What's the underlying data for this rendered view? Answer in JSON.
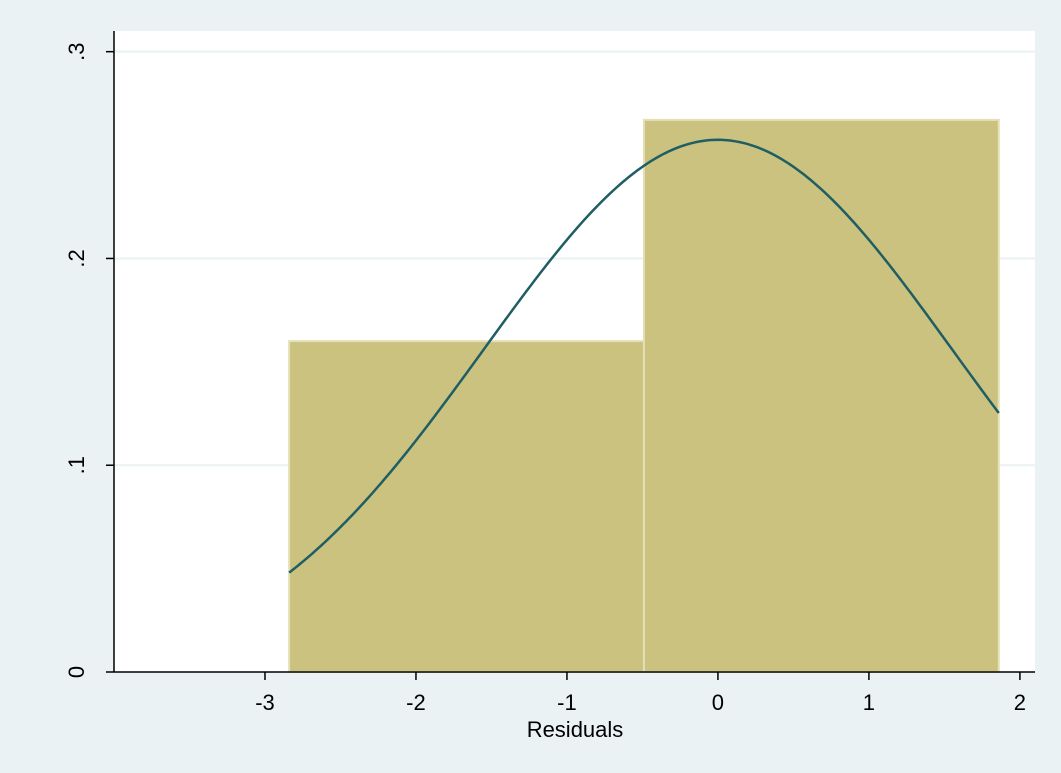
{
  "chart_data": {
    "type": "bar",
    "subtype": "histogram-with-normal-density",
    "title": "",
    "xlabel": "Residuals",
    "ylabel": "",
    "xlim": [
      -4,
      2.1
    ],
    "ylim": [
      0,
      0.31
    ],
    "x_ticks": [
      -3,
      -2,
      -1,
      0,
      1,
      2
    ],
    "x_tick_labels": [
      "-3",
      "-2",
      "-1",
      "0",
      "1",
      "2"
    ],
    "y_ticks": [
      0,
      0.1,
      0.2,
      0.3
    ],
    "y_tick_labels": [
      "0",
      ".1",
      ".2",
      ".3"
    ],
    "grid": "horizontal",
    "bins": [
      {
        "x0": -2.84,
        "x1": -0.49,
        "density": 0.16
      },
      {
        "x0": -0.49,
        "x1": 1.86,
        "density": 0.267
      }
    ],
    "density_curve": {
      "type": "normal",
      "mean": 0,
      "sd": 1.55,
      "x_range": [
        -2.84,
        1.86
      ]
    },
    "colors": {
      "background": "#eaf2f3",
      "plot_area": "#ffffff",
      "bar_fill": "#cbc27f",
      "bar_edge": "#e4dfb5",
      "curve": "#1f5e63",
      "grid": "#eaf2f3"
    }
  }
}
